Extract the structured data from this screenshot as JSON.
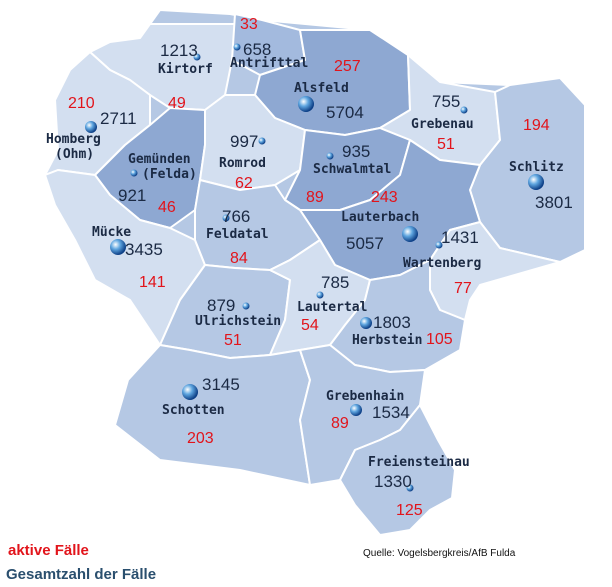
{
  "legend": {
    "active_label": "aktive Fälle",
    "total_label": "Gesamtzahl der Fälle"
  },
  "source": "Quelle: Vogelsbergkreis/AfB Fulda",
  "colors": {
    "active": "#e2141b",
    "total": "#1b2a44",
    "region_dark": "#8ea8d2",
    "region_mid": "#b5c8e4",
    "region_light": "#d3dff0",
    "border": "#ffffff"
  },
  "municipalities": [
    {
      "name": "Kirtorf",
      "total": "1213",
      "active": "49"
    },
    {
      "name": "Antrifttal",
      "total": "658",
      "active": "33"
    },
    {
      "name": "Alsfeld",
      "total": "5704",
      "active": "257"
    },
    {
      "name": "Grebenau",
      "total": "755",
      "active": "51"
    },
    {
      "name": "Homberg (Ohm)",
      "name_line1": "Homberg",
      "name_line2": "(Ohm)",
      "total": "2711",
      "active": "210"
    },
    {
      "name": "Gemünden (Felda)",
      "name_line1": "Gemünden",
      "name_line2": "(Felda)",
      "total": "921",
      "active": "46"
    },
    {
      "name": "Romrod",
      "total": "997",
      "active": "62"
    },
    {
      "name": "Schwalmtal",
      "total": "935",
      "active": "89"
    },
    {
      "name": "Schlitz",
      "total": "3801",
      "active": "194"
    },
    {
      "name": "Mücke",
      "total": "3435",
      "active": "141"
    },
    {
      "name": "Feldatal",
      "total": "766",
      "active": "84"
    },
    {
      "name": "Lauterbach",
      "total": "5057",
      "active": "243"
    },
    {
      "name": "Wartenberg",
      "total": "1431",
      "active": "77"
    },
    {
      "name": "Ulrichstein",
      "total": "879",
      "active": "51"
    },
    {
      "name": "Lautertal",
      "total": "785",
      "active": "54"
    },
    {
      "name": "Herbstein",
      "total": "1803",
      "active": "105"
    },
    {
      "name": "Schotten",
      "total": "3145",
      "active": "203"
    },
    {
      "name": "Grebenhain",
      "total": "1534",
      "active": "89"
    },
    {
      "name": "Freiensteinau",
      "total": "1330",
      "active": "125"
    }
  ]
}
